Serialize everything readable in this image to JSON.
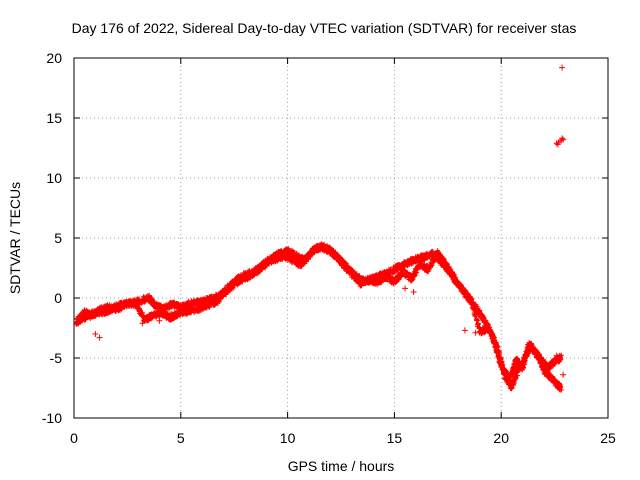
{
  "chart_data": {
    "type": "scatter",
    "title": "Day 176 of 2022, Sidereal Day-to-day VTEC variation (SDTVAR) for receiver stas",
    "xlabel": "GPS time / hours",
    "ylabel": "SDTVAR / TECUs",
    "xlim": [
      0,
      25
    ],
    "ylim": [
      -10,
      20
    ],
    "xticks": [
      0,
      5,
      10,
      15,
      20,
      25
    ],
    "yticks": [
      -10,
      -5,
      0,
      5,
      10,
      15,
      20
    ],
    "grid": true,
    "marker": "+",
    "color": "#ff0000",
    "series": [
      {
        "name": "SDTVAR",
        "trace": [
          [
            0.2,
            -1.8
          ],
          [
            0.5,
            -1.2
          ],
          [
            0.8,
            -1.5
          ],
          [
            1.2,
            -1.0
          ],
          [
            1.6,
            -0.8
          ],
          [
            2.0,
            -0.9
          ],
          [
            2.5,
            -0.5
          ],
          [
            3.0,
            -0.3
          ],
          [
            3.5,
            0.0
          ],
          [
            3.8,
            -0.6
          ],
          [
            4.2,
            -0.9
          ],
          [
            4.6,
            -0.5
          ],
          [
            5.0,
            -0.8
          ],
          [
            5.5,
            -0.4
          ],
          [
            6.0,
            -0.3
          ],
          [
            6.4,
            -0.1
          ],
          [
            6.8,
            0.2
          ],
          [
            7.2,
            0.8
          ],
          [
            7.6,
            1.5
          ],
          [
            8.0,
            1.9
          ],
          [
            8.5,
            2.3
          ],
          [
            9.0,
            3.0
          ],
          [
            9.5,
            3.6
          ],
          [
            10.0,
            3.9
          ],
          [
            10.4,
            3.5
          ],
          [
            10.8,
            3.1
          ],
          [
            11.2,
            4.0
          ],
          [
            11.6,
            4.3
          ],
          [
            12.0,
            4.0
          ],
          [
            12.4,
            3.3
          ],
          [
            12.8,
            2.5
          ],
          [
            13.2,
            1.8
          ],
          [
            13.6,
            1.4
          ],
          [
            14.0,
            1.6
          ],
          [
            14.4,
            1.9
          ],
          [
            14.8,
            2.2
          ],
          [
            15.2,
            2.6
          ],
          [
            15.6,
            2.9
          ],
          [
            16.0,
            3.2
          ],
          [
            16.4,
            3.4
          ],
          [
            16.8,
            3.7
          ],
          [
            17.2,
            3.0
          ],
          [
            17.6,
            2.2
          ],
          [
            18.0,
            1.0
          ],
          [
            18.4,
            0.2
          ],
          [
            18.8,
            -0.8
          ],
          [
            19.2,
            -1.8
          ],
          [
            19.6,
            -3.2
          ],
          [
            19.9,
            -5.0
          ],
          [
            20.2,
            -6.6
          ],
          [
            20.5,
            -7.4
          ],
          [
            20.8,
            -6.0
          ],
          [
            21.1,
            -5.0
          ],
          [
            21.4,
            -4.0
          ],
          [
            21.7,
            -4.8
          ],
          [
            22.0,
            -6.0
          ],
          [
            22.3,
            -6.6
          ],
          [
            22.6,
            -7.2
          ],
          [
            22.8,
            -7.5
          ]
        ],
        "secondary": [
          [
            0.1,
            -2.0
          ],
          [
            0.4,
            -1.7
          ],
          [
            0.9,
            -1.3
          ],
          [
            1.4,
            -1.2
          ],
          [
            1.9,
            -0.8
          ],
          [
            2.4,
            -0.4
          ],
          [
            2.9,
            -0.5
          ],
          [
            3.3,
            -1.8
          ],
          [
            3.7,
            -1.4
          ],
          [
            4.1,
            -1.3
          ],
          [
            4.5,
            -1.6
          ],
          [
            4.9,
            -1.3
          ],
          [
            5.3,
            -1.1
          ],
          [
            5.8,
            -0.9
          ],
          [
            6.2,
            -0.6
          ],
          [
            6.6,
            -0.4
          ],
          [
            7.0,
            0.3
          ],
          [
            7.4,
            1.0
          ],
          [
            7.9,
            1.6
          ],
          [
            8.3,
            1.9
          ],
          [
            8.8,
            2.6
          ],
          [
            9.3,
            3.2
          ],
          [
            9.8,
            3.5
          ],
          [
            10.2,
            3.2
          ],
          [
            10.6,
            2.8
          ],
          [
            11.0,
            3.6
          ],
          [
            11.4,
            4.2
          ],
          [
            11.8,
            4.1
          ],
          [
            12.2,
            3.6
          ],
          [
            12.6,
            2.8
          ],
          [
            13.0,
            2.0
          ],
          [
            13.4,
            1.2
          ],
          [
            13.8,
            1.5
          ],
          [
            14.2,
            1.3
          ],
          [
            14.6,
            1.8
          ],
          [
            15.0,
            1.4
          ],
          [
            15.4,
            2.2
          ],
          [
            15.8,
            1.6
          ],
          [
            16.2,
            2.8
          ],
          [
            16.6,
            2.4
          ],
          [
            17.0,
            3.8
          ],
          [
            17.4,
            2.8
          ],
          [
            17.8,
            1.7
          ],
          [
            18.2,
            0.7
          ],
          [
            18.6,
            -0.3
          ],
          [
            19.0,
            -2.8
          ],
          [
            19.4,
            -2.5
          ],
          [
            19.8,
            -4.0
          ],
          [
            20.1,
            -6.0
          ],
          [
            20.4,
            -6.8
          ],
          [
            20.7,
            -5.2
          ],
          [
            21.0,
            -5.8
          ],
          [
            21.3,
            -3.8
          ],
          [
            21.6,
            -4.5
          ],
          [
            21.9,
            -5.2
          ],
          [
            22.2,
            -5.8
          ],
          [
            22.5,
            -5.3
          ],
          [
            22.8,
            -5.0
          ]
        ],
        "points": [
          [
            1.0,
            -3.0
          ],
          [
            1.2,
            -3.3
          ],
          [
            3.2,
            -2.1
          ],
          [
            4.0,
            -1.9
          ],
          [
            15.5,
            0.8
          ],
          [
            15.9,
            0.5
          ],
          [
            18.3,
            -2.7
          ],
          [
            18.8,
            -2.9
          ],
          [
            22.6,
            -4.8
          ],
          [
            22.9,
            -6.4
          ],
          [
            22.6,
            12.9
          ],
          [
            22.7,
            13.0
          ],
          [
            22.8,
            13.1
          ],
          [
            22.9,
            13.2
          ],
          [
            22.65,
            12.8
          ],
          [
            22.85,
            13.3
          ],
          [
            22.85,
            19.2
          ]
        ]
      }
    ]
  }
}
